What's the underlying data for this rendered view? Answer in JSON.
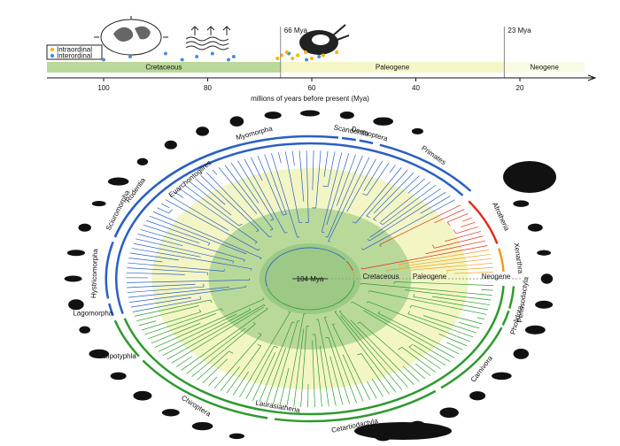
{
  "timeline": {
    "legend": [
      "Intraordinal",
      "Interordinal"
    ],
    "events": [
      {
        "value": 66,
        "label": "66 Mya"
      },
      {
        "value": 23,
        "label": "23 Mya"
      }
    ],
    "periods": [
      "Cretaceous",
      "Paleogene",
      "Neogene"
    ],
    "ticks": [
      100,
      80,
      60,
      40,
      20
    ],
    "axis_label": "millions of years before present (Mya)",
    "intraordinal": [
      66.6,
      65.8,
      64.8,
      63.7,
      62.7,
      61.2,
      60,
      57.8,
      55.2
    ],
    "interordinal": [
      100,
      94.9,
      88.1,
      84.9,
      82.1,
      79.1,
      76,
      75,
      64.4,
      61,
      58.6
    ]
  },
  "tree": {
    "center_label": "104 Mya",
    "eras": [
      "Cretaceous",
      "Paleogene",
      "Neogene"
    ],
    "superorders": [
      "Euarchontoglires",
      "Afrotheria",
      "Xenarthra",
      "Laurasiatheria"
    ],
    "orders": [
      "Lagomorpha",
      "Hystricomorpha",
      "Sciuromorpha",
      "Rodentia",
      "Myomorpha",
      "Scandentia",
      "Dermoptera",
      "Primates",
      "Perissodactyla",
      "Pholidota",
      "Carnivora",
      "Cetartiodactyla",
      "Chiroptera",
      "Eulipotyphla"
    ]
  }
}
